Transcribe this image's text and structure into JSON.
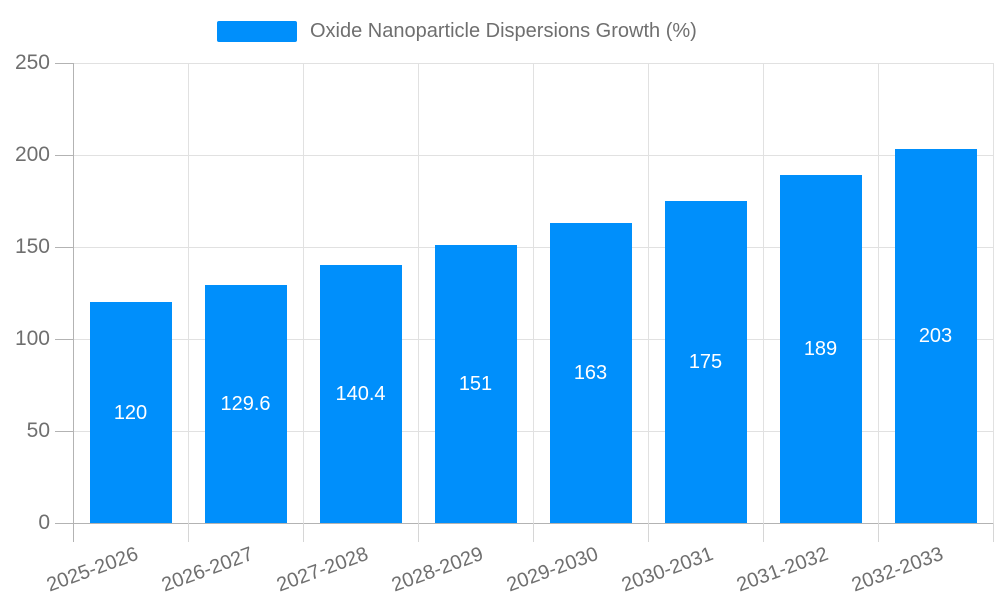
{
  "legend": {
    "label": "Oxide Nanoparticle Dispersions Growth (%)"
  },
  "chart_data": {
    "type": "bar",
    "title": "",
    "xlabel": "",
    "ylabel": "",
    "categories": [
      "2025-2026",
      "2026-2027",
      "2027-2028",
      "2028-2029",
      "2029-2030",
      "2030-2031",
      "2031-2032",
      "2032-2033"
    ],
    "values": [
      120,
      129.6,
      140.4,
      151,
      163,
      175,
      189,
      203
    ],
    "value_labels": [
      "120",
      "129.6",
      "140.4",
      "151",
      "163",
      "175",
      "189",
      "203"
    ],
    "series_name": "Oxide Nanoparticle Dispersions Growth (%)",
    "ylim": [
      0,
      250
    ],
    "yticks": [
      0,
      50,
      100,
      150,
      200,
      250
    ],
    "grid": true,
    "legend_position": "top",
    "value_labels_position": "inside-center",
    "x_label_rotation_deg": -20
  },
  "colors": {
    "bar": "#008FFB",
    "grid": "#e1e1e1",
    "tick": "#d6d6d6",
    "axis": "#b3b3b3",
    "text": "#6f6f6f",
    "value_text": "#ffffff"
  }
}
